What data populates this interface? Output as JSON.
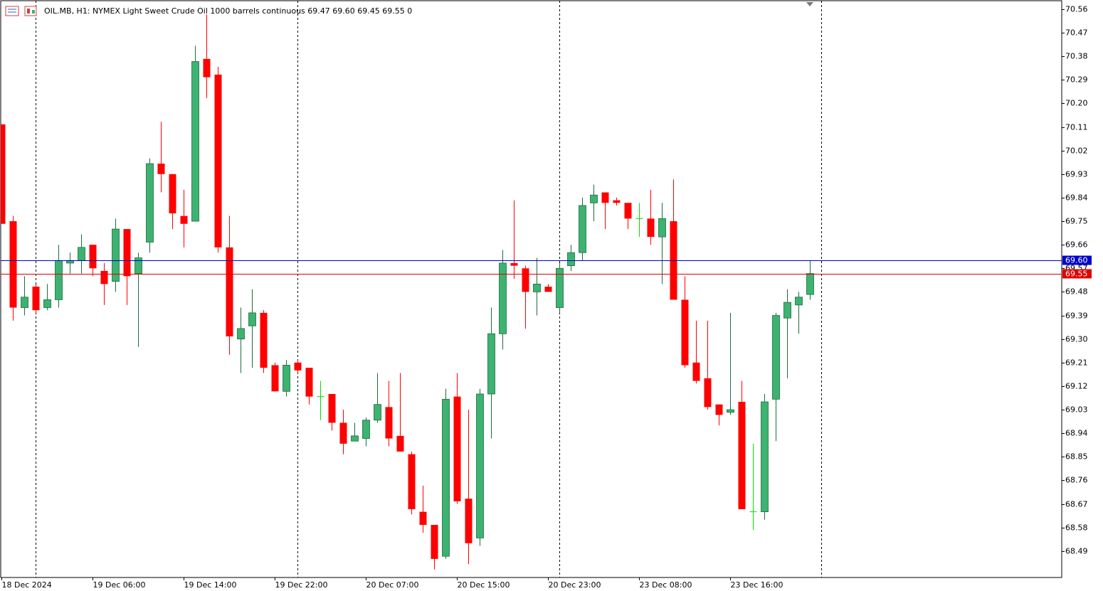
{
  "chart_data": {
    "type": "candlestick",
    "title": "OIL.MB, H1:  NYMEX Light Sweet Crude Oil 1000 barrels continuous  69.47 69.60 69.45 69.55  0",
    "categories": [
      "18 Dec 2024",
      null,
      null,
      null,
      null,
      null,
      null,
      null,
      "19 Dec 06:00",
      null,
      null,
      null,
      null,
      null,
      null,
      null,
      "19 Dec 14:00",
      null,
      null,
      null,
      null,
      null,
      null,
      null,
      "19 Dec 22:00",
      null,
      null,
      null,
      null,
      null,
      null,
      null,
      "20 Dec 07:00",
      null,
      null,
      null,
      null,
      null,
      null,
      null,
      "20 Dec 15:00",
      null,
      null,
      null,
      null,
      null,
      null,
      null,
      "20 Dec 23:00",
      null,
      null,
      null,
      null,
      null,
      null,
      null,
      "23 Dec 08:00",
      null,
      null,
      null,
      null,
      null,
      null,
      null,
      "23 Dec 16:00",
      null,
      null,
      null,
      null,
      null,
      null,
      null
    ],
    "open": [
      70.12,
      69.75,
      69.42,
      69.5,
      69.42,
      69.45,
      69.59,
      69.6,
      69.66,
      69.56,
      69.52,
      69.72,
      69.55,
      69.67,
      69.97,
      69.93,
      69.77,
      69.75,
      70.37,
      70.31,
      69.65,
      69.3,
      69.35,
      69.4,
      69.2,
      69.1,
      69.21,
      69.19,
      69.08,
      69.09,
      68.98,
      68.91,
      68.92,
      68.99,
      69.04,
      68.93,
      68.86,
      68.64,
      68.59,
      68.47,
      69.08,
      68.69,
      68.54,
      69.09,
      69.32,
      69.59,
      69.57,
      69.48,
      69.5,
      69.42,
      69.58,
      69.63,
      69.82,
      69.86,
      69.83,
      69.82,
      69.76,
      69.76,
      69.69,
      69.75,
      69.45,
      69.21,
      69.15,
      69.05,
      69.02,
      69.06,
      68.64,
      68.64,
      69.07,
      69.38,
      69.43,
      69.47
    ],
    "high": [
      70.12,
      69.77,
      69.54,
      69.51,
      69.51,
      69.66,
      69.63,
      69.7,
      69.66,
      69.59,
      69.76,
      69.72,
      69.63,
      69.99,
      70.13,
      69.93,
      69.87,
      70.42,
      70.54,
      70.34,
      69.77,
      69.42,
      69.49,
      69.41,
      69.21,
      69.22,
      69.22,
      69.19,
      69.14,
      69.09,
      69.03,
      68.98,
      69.0,
      69.17,
      69.14,
      69.17,
      68.87,
      68.74,
      68.59,
      69.11,
      69.17,
      69.03,
      69.11,
      69.42,
      69.64,
      69.83,
      69.58,
      69.61,
      69.51,
      69.59,
      69.66,
      69.84,
      69.89,
      69.86,
      69.84,
      69.82,
      69.82,
      69.87,
      69.82,
      69.91,
      69.54,
      69.37,
      69.37,
      69.05,
      69.4,
      69.14,
      68.9,
      69.09,
      69.4,
      69.49,
      69.48,
      69.6
    ],
    "low": [
      69.74,
      69.37,
      69.39,
      69.4,
      69.41,
      69.42,
      69.55,
      69.55,
      69.54,
      69.43,
      69.48,
      69.43,
      69.27,
      69.63,
      69.86,
      69.72,
      69.65,
      69.75,
      70.22,
      69.63,
      69.24,
      69.17,
      69.19,
      69.17,
      69.1,
      69.08,
      69.17,
      69.05,
      68.99,
      68.95,
      68.86,
      68.91,
      68.89,
      68.98,
      68.89,
      68.87,
      68.63,
      68.56,
      68.42,
      68.46,
      68.67,
      68.44,
      68.51,
      68.92,
      69.26,
      69.53,
      69.34,
      69.39,
      69.48,
      69.4,
      69.56,
      69.6,
      69.75,
      69.72,
      69.81,
      69.72,
      69.69,
      69.66,
      69.51,
      69.45,
      69.19,
      69.13,
      69.03,
      68.97,
      69.01,
      68.65,
      68.57,
      68.61,
      68.91,
      69.15,
      69.32,
      69.45
    ],
    "close": [
      69.74,
      69.42,
      69.46,
      69.41,
      69.45,
      69.6,
      69.6,
      69.65,
      69.57,
      69.51,
      69.72,
      69.54,
      69.61,
      69.97,
      69.93,
      69.78,
      69.74,
      70.36,
      70.3,
      69.65,
      69.31,
      69.34,
      69.4,
      69.19,
      69.1,
      69.2,
      69.18,
      69.08,
      69.08,
      68.98,
      68.9,
      68.93,
      68.99,
      69.05,
      68.92,
      68.87,
      68.65,
      68.59,
      68.46,
      69.07,
      68.68,
      68.52,
      69.09,
      69.32,
      69.59,
      69.58,
      69.48,
      69.51,
      69.48,
      69.57,
      69.63,
      69.81,
      69.85,
      69.82,
      69.82,
      69.76,
      69.76,
      69.69,
      69.76,
      69.45,
      69.2,
      69.14,
      69.04,
      69.01,
      69.03,
      68.65,
      68.64,
      69.06,
      69.39,
      69.44,
      69.46,
      69.55
    ],
    "up_color": "#3cb371",
    "down_color": "#ff0000",
    "doji_color": "#00e000",
    "ylim": [
      68.389,
      70.595
    ],
    "yticks": [
      70.56,
      70.47,
      70.38,
      70.29,
      {
        "value": 70.2,
        "label": "70.20"
      },
      70.11,
      70.02,
      69.93,
      69.84,
      69.75,
      69.66,
      69.57,
      69.48,
      69.39,
      {
        "value": 69.3,
        "label": "69.30"
      },
      69.21,
      69.12,
      69.03,
      68.94,
      68.85,
      68.76,
      68.67,
      68.58,
      68.49
    ],
    "price_lines": [
      {
        "value": 69.6,
        "label": "69.60",
        "color": "#0000cd"
      },
      {
        "value": 69.55,
        "label": "69.55",
        "color": "#e00000"
      }
    ]
  }
}
